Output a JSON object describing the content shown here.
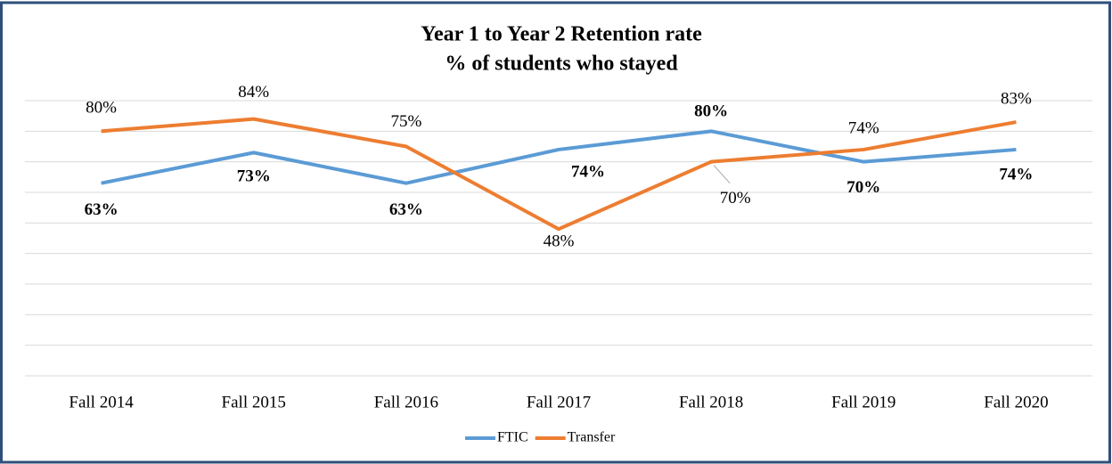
{
  "chart_data": {
    "type": "line",
    "title": "Year 1 to Year 2 Retention rate",
    "subtitle": "% of students who stayed",
    "categories": [
      "Fall 2014",
      "Fall 2015",
      "Fall 2016",
      "Fall 2017",
      "Fall 2018",
      "Fall 2019",
      "Fall 2020"
    ],
    "series": [
      {
        "name": "FTIC",
        "color": "#5b9bd5",
        "values": [
          63,
          73,
          63,
          74,
          80,
          70,
          74
        ],
        "value_labels": [
          "63%",
          "73%",
          "63%",
          "74%",
          "80%",
          "70%",
          "74%"
        ]
      },
      {
        "name": "Transfer",
        "color": "#ed7d31",
        "values": [
          80,
          84,
          75,
          48,
          70,
          74,
          83
        ],
        "value_labels": [
          "80%",
          "84%",
          "75%",
          "48%",
          "70%",
          "74%",
          "83%"
        ]
      }
    ],
    "ylim": [
      0,
      90
    ],
    "yticks": [
      0,
      10,
      20,
      30,
      40,
      50,
      60,
      70,
      80,
      90
    ],
    "grid": true,
    "legend": "bottom"
  }
}
